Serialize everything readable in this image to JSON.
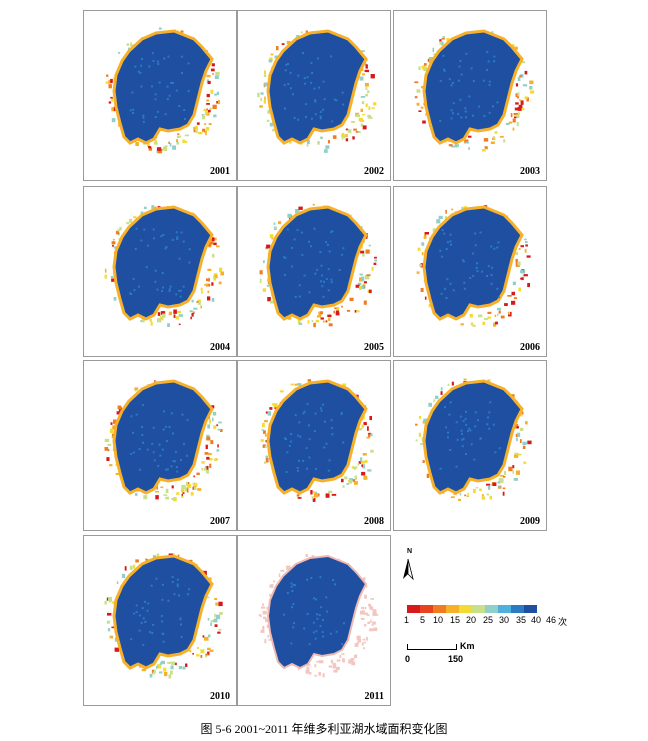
{
  "maps": [
    {
      "year": "2001"
    },
    {
      "year": "2002"
    },
    {
      "year": "2003"
    },
    {
      "year": "2004"
    },
    {
      "year": "2005"
    },
    {
      "year": "2006"
    },
    {
      "year": "2007"
    },
    {
      "year": "2008"
    },
    {
      "year": "2009"
    },
    {
      "year": "2010"
    },
    {
      "year": "2011"
    }
  ],
  "north_label": "N",
  "legend": {
    "colors": [
      "#d7191c",
      "#e8431f",
      "#f07c22",
      "#f7b02a",
      "#f2dc33",
      "#c8e08a",
      "#90d0c8",
      "#4fb0dd",
      "#2b7ac6",
      "#1e4fa0"
    ],
    "tick_labels": [
      "1",
      "5",
      "10",
      "15",
      "20",
      "25",
      "30",
      "35",
      "40",
      "46"
    ],
    "unit": "次"
  },
  "scale": {
    "unit": "Km",
    "start": "0",
    "end": "150"
  },
  "caption": "图 5-6  2001~2011 年维多利亚湖水域面积变化图"
}
